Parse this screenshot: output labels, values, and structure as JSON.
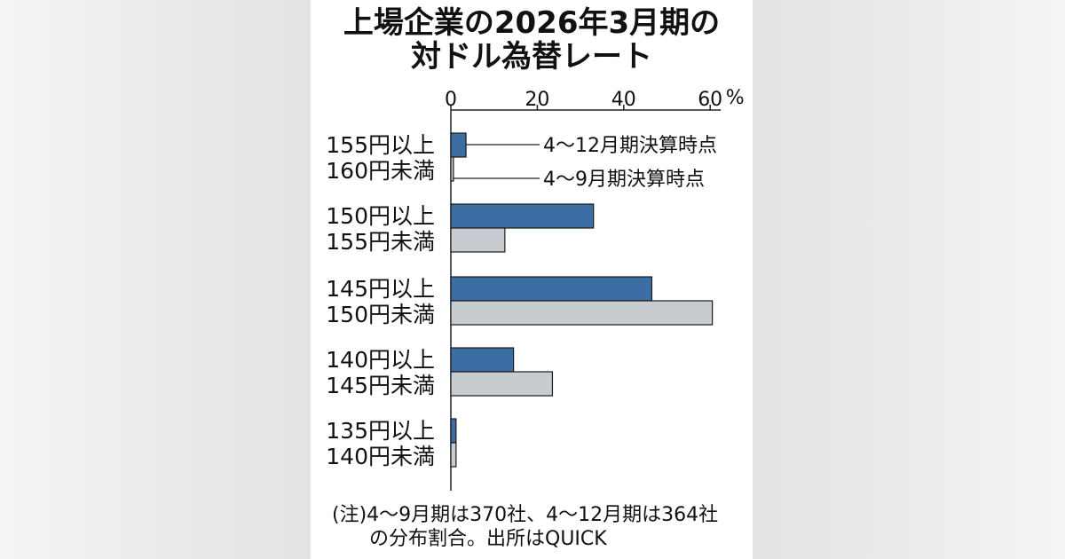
{
  "chart_data": {
    "type": "bar",
    "title": "上場企業の2026年3月期の対ドル為替レート",
    "title_lines": [
      "上場企業の2026年3月期の",
      "対ドル為替レート"
    ],
    "unit": "%",
    "xlim": [
      0,
      60
    ],
    "x_ticks": [
      "0",
      "20",
      "40",
      "60"
    ],
    "categories": [
      [
        "155円以上",
        "160円未満"
      ],
      [
        "150円以上",
        "155円未満"
      ],
      [
        "145円以上",
        "150円未満"
      ],
      [
        "140円以上",
        "145円未満"
      ],
      [
        "135円以上",
        "140円未満"
      ]
    ],
    "series": [
      {
        "name": "4〜12月期決算時点",
        "values": [
          3.5,
          33,
          46.5,
          14.5,
          1.2
        ],
        "color": "#3d6ea3"
      },
      {
        "name": "4〜9月期決算時点",
        "values": [
          0.6,
          12.5,
          60.5,
          23.5,
          1.2
        ],
        "color": "#c8ccd1"
      }
    ],
    "legend_placement": "callout beside first category"
  },
  "notes": {
    "line1": "(注)4〜9月期は370社、4〜12月期は364社",
    "line2": "の分布割合。出所はQUICK"
  },
  "colors": {
    "panel_bg": "#ffffff",
    "page_bg": "#ebebeb",
    "axis": "#222222",
    "text": "#111111"
  }
}
